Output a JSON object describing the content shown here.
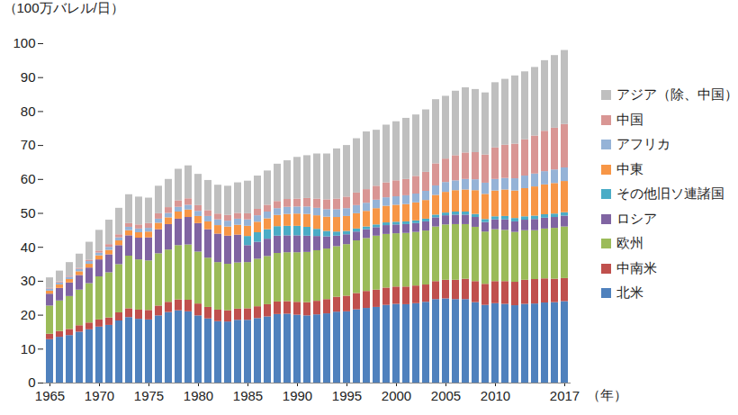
{
  "chart_data": {
    "type": "bar",
    "stacked": true,
    "grid": false,
    "legend": "right",
    "y_label": "（100万バレル/日）",
    "x_label": "（年）",
    "ylim": [
      0,
      100
    ],
    "yticks": [
      0,
      10,
      20,
      30,
      40,
      50,
      60,
      70,
      80,
      90,
      100
    ],
    "xticks": [
      1965,
      1970,
      1975,
      1980,
      1985,
      1990,
      1995,
      2000,
      2005,
      2010,
      2017
    ],
    "categories": [
      1965,
      1966,
      1967,
      1968,
      1969,
      1970,
      1971,
      1972,
      1973,
      1974,
      1975,
      1976,
      1977,
      1978,
      1979,
      1980,
      1981,
      1982,
      1983,
      1984,
      1985,
      1986,
      1987,
      1988,
      1989,
      1990,
      1991,
      1992,
      1993,
      1994,
      1995,
      1996,
      1997,
      1998,
      1999,
      2000,
      2001,
      2002,
      2003,
      2004,
      2005,
      2006,
      2007,
      2008,
      2009,
      2010,
      2011,
      2012,
      2013,
      2014,
      2015,
      2016,
      2017
    ],
    "series": [
      {
        "name": "北米",
        "color": "#4f81bd",
        "values": [
          12.8,
          13.5,
          14.0,
          15.0,
          15.7,
          16.5,
          17.0,
          18.3,
          19.3,
          18.8,
          18.6,
          19.8,
          20.8,
          21.3,
          21.0,
          19.8,
          18.9,
          18.1,
          18.0,
          18.5,
          18.5,
          19.0,
          19.5,
          20.2,
          20.3,
          20.0,
          19.8,
          20.1,
          20.4,
          20.9,
          21.0,
          21.6,
          22.0,
          22.3,
          22.9,
          23.2,
          23.1,
          23.4,
          23.8,
          24.6,
          24.8,
          24.6,
          24.6,
          23.7,
          22.9,
          23.4,
          23.2,
          22.8,
          23.2,
          23.3,
          23.6,
          23.7,
          24.0
        ]
      },
      {
        "name": "中南米",
        "color": "#c0504d",
        "values": [
          1.6,
          1.7,
          1.8,
          1.9,
          2.0,
          2.1,
          2.2,
          2.4,
          2.6,
          2.7,
          2.8,
          2.9,
          3.0,
          3.2,
          3.4,
          3.5,
          3.4,
          3.4,
          3.3,
          3.3,
          3.4,
          3.5,
          3.6,
          3.7,
          3.7,
          3.8,
          3.9,
          4.0,
          4.2,
          4.4,
          4.6,
          4.8,
          5.0,
          5.1,
          5.1,
          5.1,
          5.2,
          5.2,
          5.1,
          5.3,
          5.5,
          5.7,
          6.0,
          6.2,
          6.2,
          6.5,
          6.7,
          6.9,
          7.1,
          7.2,
          7.1,
          6.9,
          6.8
        ]
      },
      {
        "name": "欧州",
        "color": "#9bbb59",
        "values": [
          8.3,
          9.0,
          9.7,
          10.5,
          11.6,
          12.7,
          13.3,
          14.2,
          15.5,
          14.8,
          14.6,
          15.4,
          15.4,
          16.0,
          16.3,
          15.3,
          14.5,
          14.0,
          13.7,
          13.6,
          13.6,
          14.0,
          14.2,
          14.3,
          14.4,
          14.6,
          14.8,
          14.9,
          14.9,
          14.9,
          15.2,
          15.5,
          15.6,
          15.9,
          15.8,
          15.7,
          15.8,
          15.8,
          15.9,
          16.1,
          16.3,
          16.4,
          16.1,
          16.0,
          15.4,
          15.3,
          15.1,
          14.7,
          14.6,
          14.4,
          14.7,
          15.0,
          15.2
        ]
      },
      {
        "name": "ロシア",
        "color": "#8064a2",
        "values": [
          3.5,
          3.7,
          4.0,
          4.3,
          4.6,
          5.0,
          5.3,
          5.6,
          6.0,
          6.4,
          6.8,
          7.1,
          7.5,
          7.8,
          8.1,
          8.4,
          8.4,
          8.4,
          8.3,
          8.2,
          5.0,
          5.0,
          5.1,
          5.1,
          5.0,
          5.0,
          4.8,
          4.2,
          3.6,
          3.1,
          2.9,
          2.6,
          2.6,
          2.5,
          2.6,
          2.6,
          2.6,
          2.6,
          2.7,
          2.7,
          2.7,
          2.8,
          2.8,
          2.9,
          2.8,
          2.9,
          3.1,
          3.1,
          3.1,
          3.3,
          3.2,
          3.2,
          3.2
        ]
      },
      {
        "name": "その他旧ソ連諸国",
        "color": "#4bacc6",
        "values": [
          0,
          0,
          0,
          0,
          0,
          0,
          0,
          0,
          0,
          0,
          0,
          0,
          0,
          0,
          0,
          0,
          0,
          0,
          0,
          0,
          2.7,
          2.8,
          2.8,
          2.8,
          2.8,
          2.8,
          2.6,
          2.1,
          1.6,
          1.2,
          1.0,
          0.9,
          0.8,
          0.8,
          0.8,
          0.8,
          0.8,
          0.8,
          0.8,
          0.8,
          0.8,
          0.9,
          0.9,
          0.9,
          0.9,
          0.9,
          1.0,
          1.0,
          1.0,
          1.0,
          1.0,
          1.0,
          1.0
        ]
      },
      {
        "name": "中東",
        "color": "#f79646",
        "values": [
          0.9,
          1.0,
          1.0,
          1.1,
          1.1,
          1.2,
          1.3,
          1.4,
          1.5,
          1.6,
          1.7,
          1.9,
          2.0,
          2.1,
          2.2,
          2.1,
          2.3,
          2.5,
          2.7,
          2.9,
          3.0,
          3.1,
          3.2,
          3.3,
          3.5,
          3.6,
          3.8,
          4.0,
          4.2,
          4.3,
          4.4,
          4.5,
          4.6,
          4.8,
          4.9,
          5.0,
          5.1,
          5.3,
          5.5,
          5.8,
          6.1,
          6.3,
          6.5,
          7.0,
          7.4,
          7.6,
          7.8,
          8.1,
          8.3,
          8.6,
          8.8,
          9.0,
          9.2
        ]
      },
      {
        "name": "アフリカ",
        "color": "#95b3d7",
        "values": [
          0.6,
          0.6,
          0.7,
          0.7,
          0.8,
          0.8,
          0.9,
          0.9,
          1.0,
          1.1,
          1.1,
          1.2,
          1.3,
          1.4,
          1.4,
          1.5,
          1.6,
          1.7,
          1.7,
          1.8,
          1.9,
          1.9,
          2.0,
          2.0,
          2.1,
          2.1,
          2.2,
          2.2,
          2.2,
          2.3,
          2.3,
          2.4,
          2.4,
          2.5,
          2.5,
          2.5,
          2.6,
          2.6,
          2.7,
          2.8,
          2.9,
          2.9,
          3.1,
          3.2,
          3.3,
          3.4,
          3.4,
          3.6,
          3.7,
          3.8,
          3.9,
          4.0,
          4.0
        ]
      },
      {
        "name": "中国",
        "color": "#d99694",
        "values": [
          0.2,
          0.3,
          0.3,
          0.3,
          0.4,
          0.6,
          0.8,
          0.9,
          1.1,
          1.2,
          1.4,
          1.6,
          1.7,
          1.9,
          1.9,
          1.7,
          1.7,
          1.7,
          1.7,
          1.7,
          1.8,
          1.9,
          2.0,
          2.1,
          2.3,
          2.3,
          2.5,
          2.7,
          2.9,
          3.1,
          3.4,
          3.7,
          4.0,
          4.1,
          4.4,
          4.7,
          4.8,
          5.2,
          5.6,
          6.5,
          6.9,
          7.4,
          7.8,
          8.0,
          8.3,
          9.3,
          9.8,
          10.2,
          10.7,
          11.2,
          11.9,
          12.3,
          12.8
        ]
      },
      {
        "name": "アジア（除、中国）",
        "color": "#bfbfbf",
        "values": [
          3.1,
          3.2,
          4.0,
          4.2,
          5.3,
          6.1,
          7.2,
          7.8,
          8.5,
          8.2,
          7.5,
          8.1,
          8.3,
          9.3,
          9.7,
          9.2,
          8.9,
          8.5,
          8.6,
          9.0,
          9.6,
          9.8,
          10.1,
          11.0,
          11.4,
          12.3,
          12.6,
          13.3,
          13.5,
          14.8,
          15.2,
          16.0,
          17.0,
          16.5,
          17.0,
          17.4,
          18.0,
          18.1,
          18.4,
          18.9,
          18.5,
          19.0,
          19.2,
          18.6,
          18.3,
          19.2,
          19.4,
          20.1,
          20.0,
          20.2,
          20.8,
          21.4,
          21.8
        ]
      }
    ]
  }
}
